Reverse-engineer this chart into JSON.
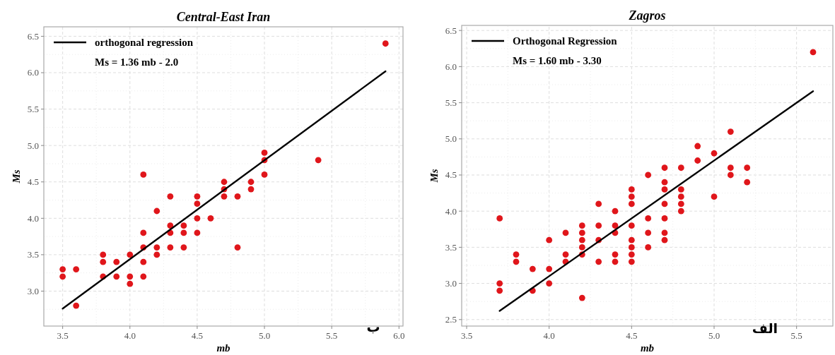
{
  "chart_data": [
    {
      "type": "scatter",
      "title": "Central-East Iran",
      "xlabel": "mb",
      "ylabel": "Ms",
      "xlim": [
        3.36,
        6.03
      ],
      "ylim": [
        2.52,
        6.63
      ],
      "xticks": [
        {
          "value": 3.5,
          "label": "3.5"
        },
        {
          "value": 4,
          "label": "4.0"
        },
        {
          "value": 4.5,
          "label": "4.5"
        },
        {
          "value": 5,
          "label": "5.0"
        },
        {
          "value": 5.5,
          "label": "5.5"
        },
        {
          "value": 6,
          "label": "6.0"
        }
      ],
      "yticks": [
        {
          "value": 3,
          "label": "3.0"
        },
        {
          "value": 3.5,
          "label": "3.5"
        },
        {
          "value": 4,
          "label": "4.0"
        },
        {
          "value": 4.5,
          "label": "4.5"
        },
        {
          "value": 5,
          "label": "5.0"
        },
        {
          "value": 5.5,
          "label": "5.5"
        },
        {
          "value": 6,
          "label": "6.0"
        },
        {
          "value": 6.5,
          "label": "6.5"
        }
      ],
      "grid": true,
      "legend": "top left",
      "annotations": [
        "Ms = 1.36 mb - 2.0",
        "ب"
      ],
      "series": [
        {
          "marker": "circle",
          "color": "#e0161b",
          "x": [
            3.5,
            3.5,
            3.6,
            3.6,
            3.8,
            3.8,
            3.8,
            3.9,
            3.9,
            4.0,
            4.0,
            4.0,
            4.1,
            4.1,
            4.1,
            4.1,
            4.1,
            4.2,
            4.2,
            4.2,
            4.3,
            4.3,
            4.3,
            4.3,
            4.4,
            4.4,
            4.4,
            4.5,
            4.5,
            4.5,
            4.5,
            4.6,
            4.7,
            4.7,
            4.7,
            4.8,
            4.8,
            4.9,
            4.9,
            5.0,
            5.0,
            5.0,
            5.4,
            5.9
          ],
          "values": [
            3.3,
            3.2,
            3.3,
            2.8,
            3.5,
            3.4,
            3.2,
            3.4,
            3.2,
            3.5,
            3.2,
            3.1,
            4.6,
            3.8,
            3.6,
            3.4,
            3.2,
            4.1,
            3.6,
            3.5,
            4.3,
            3.9,
            3.8,
            3.6,
            3.9,
            3.8,
            3.6,
            4.3,
            4.2,
            4.0,
            3.8,
            4.0,
            4.5,
            4.4,
            4.3,
            4.3,
            3.6,
            4.5,
            4.4,
            4.9,
            4.8,
            4.6,
            4.8,
            6.4
          ]
        },
        {
          "type": "line",
          "marker": "none",
          "name": "orthogonal regression",
          "color": "#000000",
          "x": [
            3.5,
            5.9
          ],
          "values": [
            2.76,
            6.02
          ]
        }
      ]
    },
    {
      "type": "scatter",
      "title": "Zagros",
      "xlabel": "mb",
      "ylabel": "Ms",
      "xlim": [
        3.47,
        5.72
      ],
      "ylim": [
        2.41,
        6.57
      ],
      "xticks": [
        {
          "value": 3.5,
          "label": "3.5"
        },
        {
          "value": 4,
          "label": "4.0"
        },
        {
          "value": 4.5,
          "label": "4.5"
        },
        {
          "value": 5,
          "label": "5.0"
        },
        {
          "value": 5.5,
          "label": "5.5"
        }
      ],
      "yticks": [
        {
          "value": 2.5,
          "label": "2.5"
        },
        {
          "value": 3,
          "label": "3.0"
        },
        {
          "value": 3.5,
          "label": "3.5"
        },
        {
          "value": 4,
          "label": "4.0"
        },
        {
          "value": 4.5,
          "label": "4.5"
        },
        {
          "value": 5,
          "label": "5.0"
        },
        {
          "value": 5.5,
          "label": "5.5"
        },
        {
          "value": 6,
          "label": "6.0"
        },
        {
          "value": 6.5,
          "label": "6.5"
        }
      ],
      "grid": true,
      "legend": "top left",
      "annotations": [
        "Ms = 1.60 mb - 3.30",
        "الف"
      ],
      "series": [
        {
          "marker": "circle",
          "color": "#e0161b",
          "x": [
            3.7,
            3.7,
            3.7,
            3.8,
            3.8,
            3.9,
            3.9,
            4.0,
            4.0,
            4.0,
            4.1,
            4.1,
            4.1,
            4.2,
            4.2,
            4.2,
            4.2,
            4.2,
            4.2,
            4.3,
            4.3,
            4.3,
            4.3,
            4.4,
            4.4,
            4.4,
            4.4,
            4.4,
            4.5,
            4.5,
            4.5,
            4.5,
            4.5,
            4.5,
            4.5,
            4.5,
            4.6,
            4.6,
            4.6,
            4.6,
            4.7,
            4.7,
            4.7,
            4.7,
            4.7,
            4.7,
            4.7,
            4.8,
            4.8,
            4.8,
            4.8,
            4.8,
            4.9,
            4.9,
            5.0,
            5.0,
            5.1,
            5.1,
            5.1,
            5.2,
            5.2,
            5.6
          ],
          "values": [
            3.9,
            3.0,
            2.9,
            3.4,
            3.3,
            3.2,
            2.9,
            3.6,
            3.2,
            3.0,
            3.7,
            3.4,
            3.3,
            3.8,
            3.7,
            3.6,
            3.5,
            3.4,
            2.8,
            4.1,
            3.8,
            3.6,
            3.3,
            4.0,
            3.8,
            3.7,
            3.4,
            3.3,
            4.3,
            4.2,
            4.1,
            3.8,
            3.6,
            3.5,
            3.4,
            3.3,
            4.5,
            3.9,
            3.7,
            3.5,
            4.6,
            4.4,
            4.3,
            4.1,
            3.9,
            3.7,
            3.6,
            4.6,
            4.3,
            4.2,
            4.1,
            4.0,
            4.9,
            4.7,
            4.8,
            4.2,
            5.1,
            4.6,
            4.5,
            4.6,
            4.4,
            6.2
          ]
        },
        {
          "type": "line",
          "marker": "none",
          "name": "Orthogonal Regression",
          "color": "#000000",
          "x": [
            3.7,
            5.6
          ],
          "values": [
            2.62,
            5.66
          ]
        }
      ]
    }
  ]
}
